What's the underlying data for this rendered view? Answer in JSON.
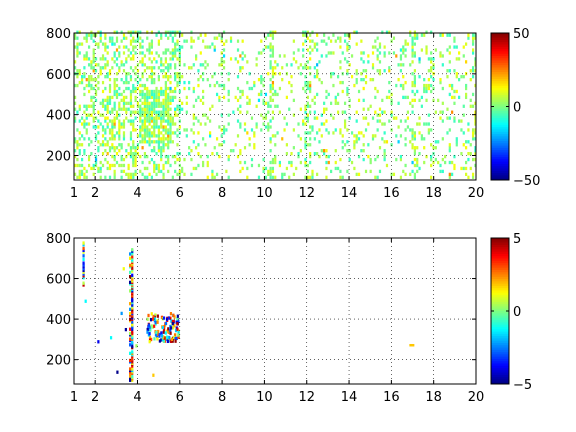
{
  "chart_data": [
    {
      "type": "heatmap",
      "title": "",
      "xlabel": "",
      "ylabel": "",
      "xlim": [
        1,
        20
      ],
      "ylim": [
        80,
        800
      ],
      "x_ticks": [
        1,
        2,
        4,
        6,
        8,
        10,
        12,
        14,
        16,
        18,
        20
      ],
      "x_tick_labels": [
        "1",
        "2",
        "4",
        "6",
        "8",
        "10",
        "12",
        "14",
        "16",
        "18",
        "20"
      ],
      "y_ticks": [
        200,
        400,
        600,
        800
      ],
      "y_tick_labels": [
        "200",
        "400",
        "600",
        "800"
      ],
      "grid": true,
      "colormap": "jet",
      "colorbar": {
        "range": [
          -50,
          50
        ],
        "ticks": [
          -50,
          0,
          50
        ],
        "tick_labels": [
          "−50",
          "0",
          "50"
        ]
      },
      "pattern": "dense near-zero (green/cyan/yellow) scatter across all x, densest for x 1 to 6 with a cluster around x 4-5.5, y 250-500; vertical streaks near x 3.7, 10.3, 12, 17, 20"
    },
    {
      "type": "heatmap",
      "title": "",
      "xlabel": "",
      "ylabel": "",
      "xlim": [
        1,
        20
      ],
      "ylim": [
        80,
        800
      ],
      "x_ticks": [
        1,
        2,
        4,
        6,
        8,
        10,
        12,
        14,
        16,
        18,
        20
      ],
      "x_tick_labels": [
        "1",
        "2",
        "4",
        "6",
        "8",
        "10",
        "12",
        "14",
        "16",
        "18",
        "20"
      ],
      "y_ticks": [
        200,
        400,
        600,
        800
      ],
      "y_tick_labels": [
        "200",
        "400",
        "600",
        "800"
      ],
      "grid": true,
      "colormap": "jet",
      "colorbar": {
        "range": [
          -5,
          5
        ],
        "ticks": [
          -5,
          0,
          5
        ],
        "tick_labels": [
          "−5",
          "0",
          "5"
        ]
      },
      "pattern": "sparse: vertical multicolored streak at x 3.7 spanning y 80-740, cluster around x 4.5-5.8 y 280-420, short streak near x 1.4 y 560-760, isolated points near x 2.7-3.3 and one near x 16.9 y 265"
    }
  ]
}
